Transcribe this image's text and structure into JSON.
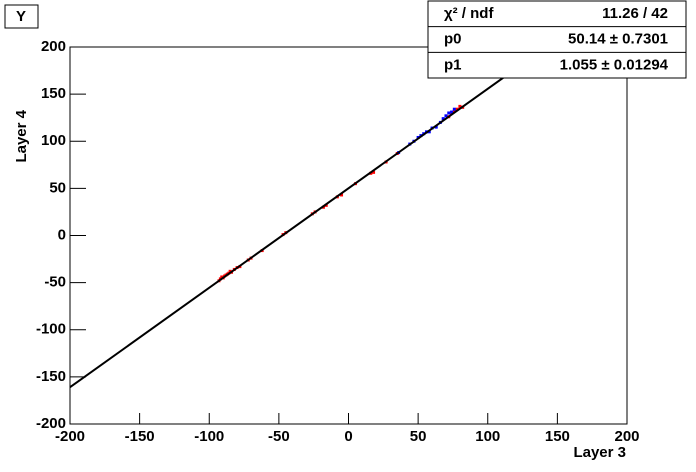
{
  "chart_data": {
    "type": "scatter",
    "title": "Y",
    "x_label": "Layer 3",
    "y_label": "Layer 4",
    "xlim": [
      -200,
      200
    ],
    "ylim": [
      -200,
      200
    ],
    "xticks": [
      -200,
      -150,
      -100,
      -50,
      0,
      50,
      100,
      150,
      200
    ],
    "yticks": [
      -200,
      -150,
      -100,
      -50,
      0,
      50,
      100,
      150,
      200
    ],
    "series": [
      {
        "color": "#ff0000",
        "x": [
          -93,
          -92,
          -91,
          -90,
          -89,
          -88,
          -87,
          -86,
          -85,
          -84,
          -82,
          -80,
          -78,
          -72,
          -70,
          -62,
          -47,
          -45,
          -26,
          -24,
          -18,
          -16,
          -8,
          -5,
          5,
          16,
          18,
          27,
          35,
          72,
          74,
          76,
          78,
          80,
          82
        ],
        "values": [
          -48,
          -46,
          -44,
          -45,
          -43,
          -42,
          -41,
          -40,
          -38,
          -39,
          -36,
          -34,
          -33,
          -26,
          -24,
          -16,
          1,
          3,
          23,
          25,
          30,
          32,
          41,
          43,
          55,
          66,
          67,
          78,
          87,
          126,
          130,
          132,
          134,
          137,
          136
        ]
      },
      {
        "color": "#0000ff",
        "x": [
          36,
          44,
          47,
          50,
          52,
          54,
          56,
          58,
          60,
          63,
          66,
          68,
          70,
          72,
          74,
          76
        ],
        "values": [
          88,
          97,
          100,
          104,
          106,
          108,
          110,
          110,
          114,
          115,
          120,
          124,
          127,
          130,
          131,
          134
        ]
      }
    ],
    "fit_line": {
      "color": "#000000",
      "x": [
        -200,
        142
      ],
      "values": [
        -161,
        200
      ]
    },
    "stats": [
      [
        "χ² / ndf",
        "11.26 / 42"
      ],
      [
        "p0",
        "50.14 ± 0.7301"
      ],
      [
        "p1",
        "1.055 ± 0.01294"
      ]
    ]
  }
}
